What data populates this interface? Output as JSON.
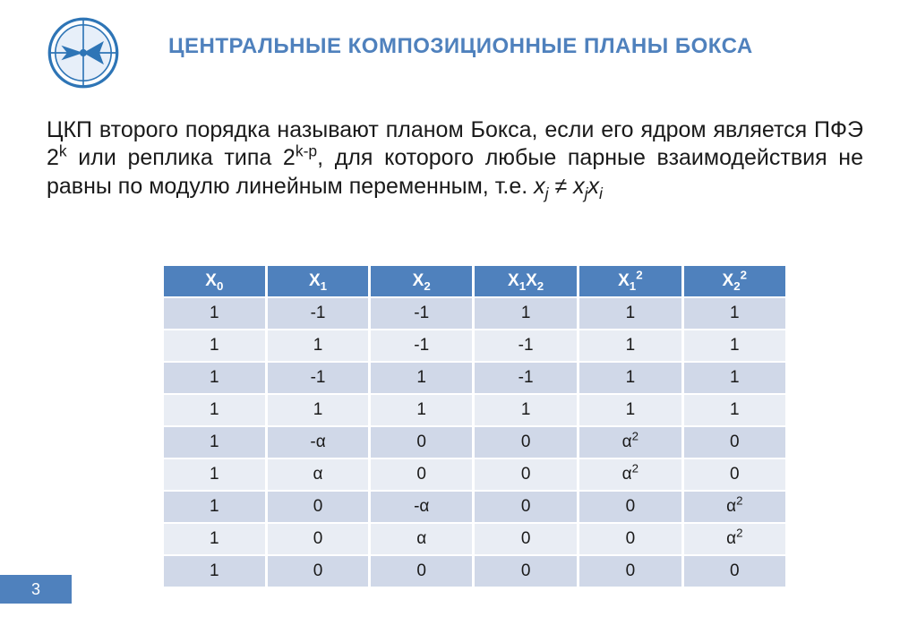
{
  "colors": {
    "accent": "#4f81bd",
    "header_text": "#ffffff",
    "row_odd_bg": "#d0d8e8",
    "row_even_bg": "#e9edf4",
    "body_text": "#1a1a1a",
    "page_bg": "#ffffff",
    "logo_ring": "#2e75b6",
    "logo_fill": "#bdd7ee"
  },
  "typography": {
    "title_fontsize_pt": 24,
    "body_fontsize_pt": 25,
    "table_fontsize_pt": 19,
    "font_family": "Arial"
  },
  "title": "ЦЕНТРАЛЬНЫЕ КОМПОЗИЦИОННЫЕ ПЛАНЫ БОКСА",
  "body": {
    "seg1": "ЦКП второго порядка называют планом Бокса, если его ядром является ПФЭ 2",
    "exp1": "k",
    "seg2": " или реплика типа 2",
    "exp2": "k-p",
    "seg3": ", для которого любые парные взаимодействия не равны по модулю линейным переменным, т.е. ",
    "var1_base": "x",
    "var1_sub": "j",
    "neq": " ≠ ",
    "var2a_base": "x",
    "var2a_sub": "j",
    "var2b_base": "x",
    "var2b_sub": "i"
  },
  "table": {
    "type": "table",
    "columns": [
      {
        "html": "X<span class=\"sub\">0</span>"
      },
      {
        "html": "X<span class=\"sub\">1</span>"
      },
      {
        "html": "X<span class=\"sub\">2</span>"
      },
      {
        "html": "X<span class=\"sub\">1</span>X<span class=\"sub\">2</span>"
      },
      {
        "html": "X<span class=\"sub\">1</span><span class=\"sup\">2</span>"
      },
      {
        "html": "X<span class=\"sub\">2</span><span class=\"sup\">2</span>"
      }
    ],
    "col_width_pct": [
      16.6,
      16.6,
      16.6,
      16.8,
      16.7,
      16.7
    ],
    "rows": [
      [
        "1",
        "-1",
        "-1",
        "1",
        "1",
        "1"
      ],
      [
        "1",
        "1",
        "-1",
        "-1",
        "1",
        "1"
      ],
      [
        "1",
        "-1",
        "1",
        "-1",
        "1",
        "1"
      ],
      [
        "1",
        "1",
        "1",
        "1",
        "1",
        "1"
      ],
      [
        "1",
        "-α",
        "0",
        "0",
        "α<span class=\"sup\">2</span>",
        "0"
      ],
      [
        "1",
        "α",
        "0",
        "0",
        "α<span class=\"sup\">2</span>",
        "0"
      ],
      [
        "1",
        "0",
        "-α",
        "0",
        "0",
        "α<span class=\"sup\">2</span>"
      ],
      [
        "1",
        "0",
        "α",
        "0",
        "0",
        "α<span class=\"sup\">2</span>"
      ],
      [
        "1",
        "0",
        "0",
        "0",
        "0",
        "0"
      ]
    ]
  },
  "page_number": "3"
}
